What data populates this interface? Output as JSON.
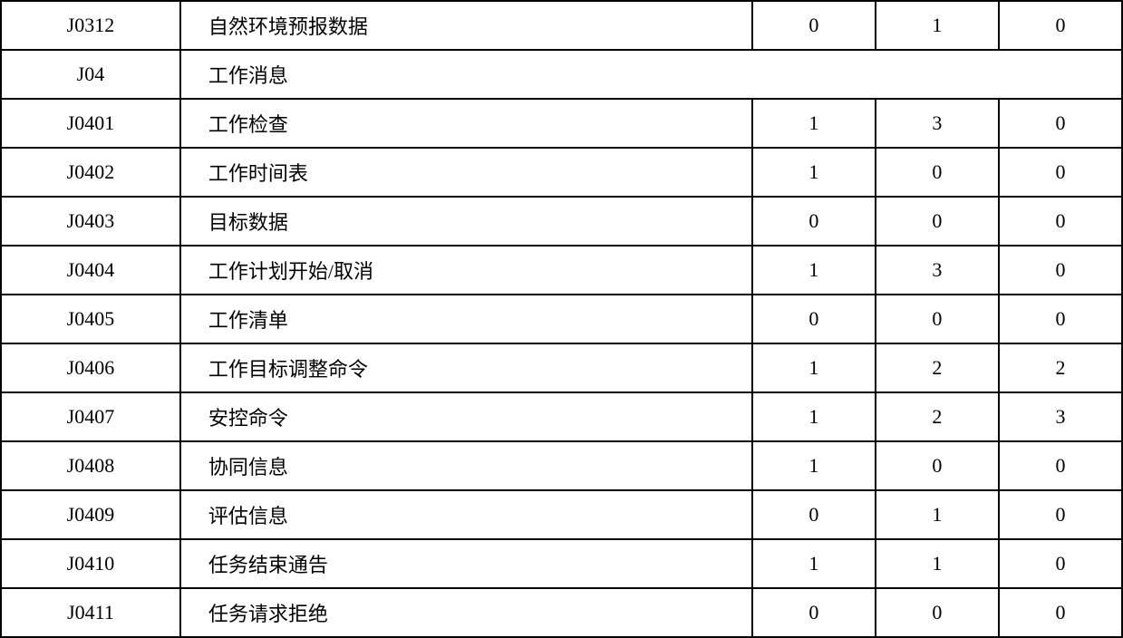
{
  "table": {
    "colors": {
      "border": "#000000",
      "background": "#ffffff",
      "text": "#000000"
    },
    "font": {
      "family": "SimSun",
      "size_pt": 16
    },
    "column_widths_pct": [
      16,
      51,
      11,
      11,
      11
    ],
    "rows": [
      {
        "type": "data",
        "code": "J0312",
        "desc": "自然环境预报数据",
        "v1": "0",
        "v2": "1",
        "v3": "0"
      },
      {
        "type": "header",
        "code": "J04",
        "desc": "工作消息"
      },
      {
        "type": "data",
        "code": "J0401",
        "desc": "工作检查",
        "v1": "1",
        "v2": "3",
        "v3": "0"
      },
      {
        "type": "data",
        "code": "J0402",
        "desc": "工作时间表",
        "v1": "1",
        "v2": "0",
        "v3": "0"
      },
      {
        "type": "data",
        "code": "J0403",
        "desc": "目标数据",
        "v1": "0",
        "v2": "0",
        "v3": "0"
      },
      {
        "type": "data",
        "code": "J0404",
        "desc": "工作计划开始/取消",
        "v1": "1",
        "v2": "3",
        "v3": "0"
      },
      {
        "type": "data",
        "code": "J0405",
        "desc": "工作清单",
        "v1": "0",
        "v2": "0",
        "v3": "0"
      },
      {
        "type": "data",
        "code": "J0406",
        "desc": "工作目标调整命令",
        "v1": "1",
        "v2": "2",
        "v3": "2"
      },
      {
        "type": "data",
        "code": "J0407",
        "desc": "安控命令",
        "v1": "1",
        "v2": "2",
        "v3": "3"
      },
      {
        "type": "data",
        "code": "J0408",
        "desc": "协同信息",
        "v1": "1",
        "v2": "0",
        "v3": "0"
      },
      {
        "type": "data",
        "code": "J0409",
        "desc": "评估信息",
        "v1": "0",
        "v2": "1",
        "v3": "0"
      },
      {
        "type": "data",
        "code": "J0410",
        "desc": "任务结束通告",
        "v1": "1",
        "v2": "1",
        "v3": "0"
      },
      {
        "type": "data",
        "code": "J0411",
        "desc": "任务请求拒绝",
        "v1": "0",
        "v2": "0",
        "v3": "0"
      }
    ]
  }
}
